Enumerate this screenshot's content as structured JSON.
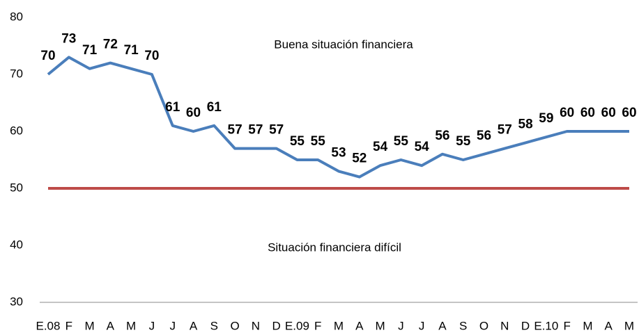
{
  "chart_data": {
    "type": "line",
    "categories": [
      "E.08",
      "F",
      "M",
      "A",
      "M",
      "J",
      "J",
      "A",
      "S",
      "O",
      "N",
      "D",
      "E.09",
      "F",
      "M",
      "A",
      "M",
      "J",
      "J",
      "A",
      "S",
      "O",
      "N",
      "D",
      "E.10",
      "F",
      "M",
      "A",
      "M"
    ],
    "series": [
      {
        "color": "#4a7ebb",
        "values": [
          70,
          73,
          71,
          72,
          71,
          70,
          61,
          60,
          61,
          57,
          57,
          57,
          55,
          55,
          53,
          52,
          54,
          55,
          54,
          56,
          55,
          56,
          57,
          58,
          59,
          60,
          60,
          60,
          60
        ]
      }
    ],
    "reference_line": {
      "value": 50,
      "color": "#be4b48"
    },
    "annotations": [
      "Buena situación financiera",
      "Situación financiera difícil"
    ],
    "ylim": [
      30,
      80
    ],
    "yticks": [
      30,
      40,
      50,
      60,
      70,
      80
    ]
  }
}
